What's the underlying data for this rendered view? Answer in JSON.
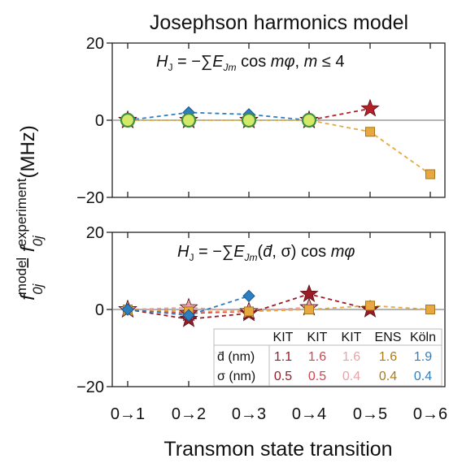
{
  "chart_data": [
    {
      "type": "line",
      "title": "Josephson harmonics model",
      "annotation": "H_J = −∑E_Jm cos mφ,   m ≤ 4",
      "ylim": [
        -20,
        20
      ],
      "yticks": [
        "20",
        "0",
        "−20"
      ],
      "categories": [
        "0→1",
        "0→2",
        "0→3",
        "0→4",
        "0→5",
        "0→6"
      ],
      "series": [
        {
          "name": "KIT 1.1/0.5",
          "color": "#b3202a",
          "marker": "star",
          "dash": "5,4",
          "values": [
            0,
            0,
            0,
            0,
            3,
            null
          ]
        },
        {
          "name": "KIT 1.6/0.5",
          "color": "#d9434b",
          "marker": "star",
          "dash": "5,4",
          "values": [
            0,
            0,
            0,
            0,
            null,
            null
          ]
        },
        {
          "name": "KIT 1.6/0.4",
          "color": "#e8a4a6",
          "marker": "star",
          "dash": "5,4",
          "values": [
            0,
            0,
            0,
            0,
            null,
            null
          ]
        },
        {
          "name": "ENS 1.6/0.4",
          "color": "#e8a840",
          "marker": "square",
          "dash": "5,4",
          "values": [
            0,
            0,
            0,
            0,
            -3,
            -14
          ]
        },
        {
          "name": "Köln 1.9/0.4",
          "color": "#2f7fc0",
          "marker": "diamond",
          "dash": "5,4",
          "values": [
            0,
            2,
            1.5,
            0,
            null,
            null
          ]
        },
        {
          "name": "green",
          "color": "#c8c060",
          "marker": "circle-green",
          "dash": "2,3",
          "values": [
            0,
            0,
            0,
            0,
            null,
            null
          ]
        }
      ]
    },
    {
      "type": "line",
      "annotation": "H_J = −∑E_Jm(d̄, σ) cos mφ",
      "ylim": [
        -20,
        20
      ],
      "yticks": [
        "20",
        "0",
        "−20"
      ],
      "categories": [
        "0→1",
        "0→2",
        "0→3",
        "0→4",
        "0→5",
        "0→6"
      ],
      "series": [
        {
          "name": "KIT 1.1/0.5",
          "color": "#9b1b26",
          "marker": "star",
          "dash": "5,4",
          "values": [
            0,
            -2.5,
            -1,
            4,
            0,
            null
          ]
        },
        {
          "name": "KIT 1.6/0.5",
          "color": "#d9434b",
          "marker": "star",
          "dash": "5,4",
          "values": [
            0,
            -1,
            -0.5,
            0.5,
            null,
            null
          ]
        },
        {
          "name": "KIT 1.6/0.4",
          "color": "#e8a4a6",
          "marker": "star",
          "dash": "5,4",
          "values": [
            0,
            0.5,
            -0.5,
            0.5,
            null,
            null
          ]
        },
        {
          "name": "ENS 1.6/0.4",
          "color": "#e8a840",
          "marker": "square",
          "dash": "5,4",
          "values": [
            0,
            -0.5,
            -0.5,
            0,
            1,
            0
          ]
        },
        {
          "name": "Köln 1.9/0.4",
          "color": "#2f7fc0",
          "marker": "diamond",
          "dash": "5,4",
          "values": [
            0,
            -1.5,
            3.5,
            null,
            null,
            null
          ]
        }
      ]
    }
  ],
  "shared": {
    "ylabel_main": "f",
    "ylabel_sup_model": "model",
    "ylabel_sub": "0j",
    "ylabel_sup_exp": "experiment",
    "ylabel_unit": "(MHz)",
    "xlabel": "Transmon state transition"
  },
  "table": {
    "headers": [
      "KIT",
      "KIT",
      "KIT",
      "ENS",
      "Köln"
    ],
    "header_colors": [
      "#111111",
      "#111111",
      "#111111",
      "#111111",
      "#111111"
    ],
    "rows": [
      {
        "label": "d̄ (nm)",
        "values": [
          "1.1",
          "1.6",
          "1.6",
          "1.6",
          "1.9"
        ]
      },
      {
        "label": "σ (nm)",
        "values": [
          "0.5",
          "0.5",
          "0.4",
          "0.4",
          "0.4"
        ]
      }
    ],
    "colors": [
      "#9b1b26",
      "#d9434b",
      "#e8a4a6",
      "#b07a10",
      "#2f7fc0"
    ]
  }
}
